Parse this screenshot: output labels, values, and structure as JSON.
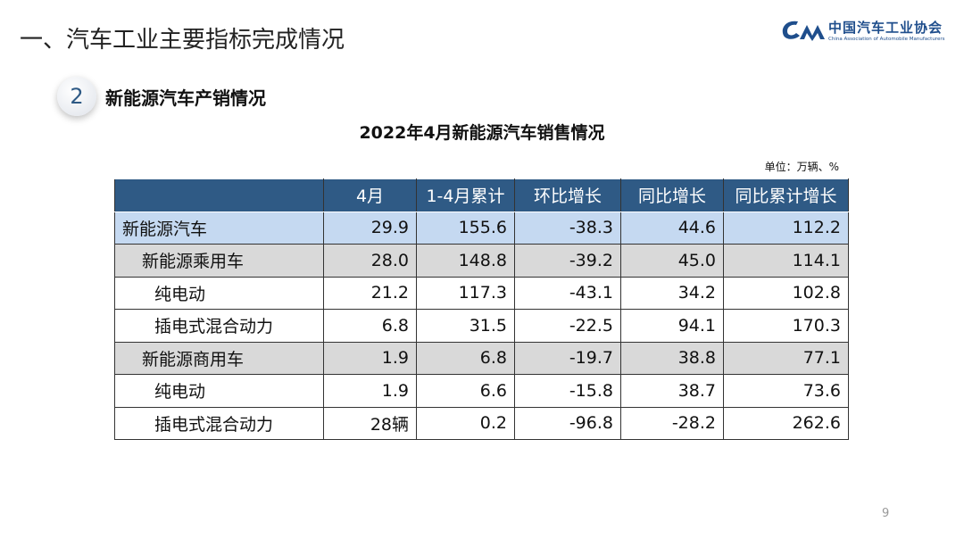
{
  "header": {
    "title": "一、汽车工业主要指标完成情况",
    "logo": {
      "cn": "中国汽车工业协会",
      "en": "China Association of Automobile Manufacturers"
    }
  },
  "section": {
    "number": "2",
    "label": "新能源汽车产销情况"
  },
  "table": {
    "caption": "2022年4月新能源汽车销售情况",
    "unit": "单位：万辆、%",
    "columns": [
      "",
      "4月",
      "1-4月累计",
      "环比增长",
      "同比增长",
      "同比累计增长"
    ],
    "rows": [
      {
        "level": 0,
        "cells": [
          "新能源汽车",
          "29.9",
          "155.6",
          "-38.3",
          "44.6",
          "112.2"
        ]
      },
      {
        "level": 1,
        "cells": [
          "新能源乘用车",
          "28.0",
          "148.8",
          "-39.2",
          "45.0",
          "114.1"
        ]
      },
      {
        "level": 2,
        "cells": [
          "纯电动",
          "21.2",
          "117.3",
          "-43.1",
          "34.2",
          "102.8"
        ]
      },
      {
        "level": 2,
        "cells": [
          "插电式混合动力",
          "6.8",
          "31.5",
          "-22.5",
          "94.1",
          "170.3"
        ]
      },
      {
        "level": 1,
        "cells": [
          "新能源商用车",
          "1.9",
          "6.8",
          "-19.7",
          "38.8",
          "77.1"
        ]
      },
      {
        "level": 2,
        "cells": [
          "纯电动",
          "1.9",
          "6.6",
          "-15.8",
          "38.7",
          "73.6"
        ]
      },
      {
        "level": 2,
        "cells": [
          "插电式混合动力",
          "28辆",
          "0.2",
          "-96.8",
          "-28.2",
          "262.6"
        ]
      }
    ]
  },
  "page_number": "9",
  "colors": {
    "header": "#2f5a85",
    "highlight": "#c5d9f1",
    "gray": "#d9d9d9"
  }
}
